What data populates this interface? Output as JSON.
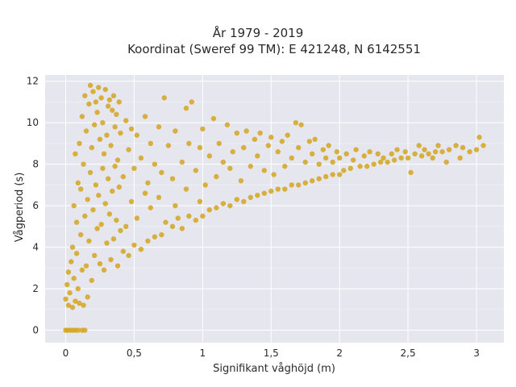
{
  "chart_data": {
    "type": "scatter",
    "title": "År 1979 - 2019",
    "subtitle": "Koordinat (Sweref 99 TM): E 421248, N 6142551",
    "xlabel": "Signifikant våghöjd (m)",
    "ylabel": "Vågperiod (s)",
    "xlim": [
      -0.15,
      3.2
    ],
    "ylim": [
      -0.6,
      12.3
    ],
    "x_ticks": [
      0,
      0.5,
      1,
      1.5,
      2,
      2.5,
      3
    ],
    "x_tick_labels": [
      "0",
      "0,5",
      "1",
      "1,5",
      "2",
      "2,5",
      "3"
    ],
    "y_ticks": [
      0,
      2,
      4,
      6,
      8,
      10,
      12
    ],
    "y_tick_labels": [
      "0",
      "2",
      "4",
      "6",
      "8",
      "10",
      "12"
    ],
    "grid": true,
    "colors": {
      "marker": "#d4a420",
      "plot_background": "#e6e6ef",
      "grid": "#ffffff",
      "text": "#2a2a2a"
    },
    "series": [
      {
        "values": [
          [
            0.0,
            0.0
          ],
          [
            0.01,
            0.0
          ],
          [
            0.03,
            0.0
          ],
          [
            0.05,
            0.0
          ],
          [
            0.07,
            0.0
          ],
          [
            0.09,
            0.0
          ],
          [
            0.12,
            0.0
          ],
          [
            0.14,
            0.0
          ],
          [
            0.0,
            1.5
          ],
          [
            0.01,
            2.2
          ],
          [
            0.02,
            1.2
          ],
          [
            0.02,
            2.8
          ],
          [
            0.03,
            1.8
          ],
          [
            0.04,
            3.3
          ],
          [
            0.05,
            1.1
          ],
          [
            0.05,
            4.0
          ],
          [
            0.06,
            2.5
          ],
          [
            0.06,
            6.0
          ],
          [
            0.07,
            1.4
          ],
          [
            0.07,
            8.5
          ],
          [
            0.08,
            3.7
          ],
          [
            0.08,
            5.2
          ],
          [
            0.09,
            7.1
          ],
          [
            0.09,
            2.0
          ],
          [
            0.1,
            1.3
          ],
          [
            0.1,
            9.0
          ],
          [
            0.11,
            4.6
          ],
          [
            0.11,
            6.8
          ],
          [
            0.12,
            2.9
          ],
          [
            0.12,
            10.3
          ],
          [
            0.13,
            1.2
          ],
          [
            0.13,
            8.0
          ],
          [
            0.14,
            5.5
          ],
          [
            0.14,
            11.3
          ],
          [
            0.15,
            3.1
          ],
          [
            0.15,
            9.6
          ],
          [
            0.16,
            6.3
          ],
          [
            0.16,
            1.6
          ],
          [
            0.17,
            10.9
          ],
          [
            0.17,
            4.3
          ],
          [
            0.18,
            7.6
          ],
          [
            0.18,
            11.8
          ],
          [
            0.19,
            2.4
          ],
          [
            0.19,
            8.8
          ],
          [
            0.2,
            5.8
          ],
          [
            0.2,
            11.5
          ],
          [
            0.21,
            3.6
          ],
          [
            0.21,
            9.9
          ],
          [
            0.22,
            7.0
          ],
          [
            0.22,
            11.0
          ],
          [
            0.23,
            4.9
          ],
          [
            0.23,
            10.5
          ],
          [
            0.24,
            6.5
          ],
          [
            0.24,
            11.7
          ],
          [
            0.25,
            3.2
          ],
          [
            0.25,
            9.2
          ],
          [
            0.26,
            5.1
          ],
          [
            0.26,
            11.2
          ],
          [
            0.27,
            7.8
          ],
          [
            0.27,
            10.0
          ],
          [
            0.28,
            2.9
          ],
          [
            0.28,
            8.5
          ],
          [
            0.29,
            6.1
          ],
          [
            0.29,
            11.6
          ],
          [
            0.3,
            4.2
          ],
          [
            0.3,
            9.4
          ],
          [
            0.31,
            7.3
          ],
          [
            0.31,
            10.8
          ],
          [
            0.32,
            5.6
          ],
          [
            0.32,
            11.1
          ],
          [
            0.33,
            3.4
          ],
          [
            0.33,
            8.9
          ],
          [
            0.34,
            6.7
          ],
          [
            0.34,
            10.6
          ],
          [
            0.35,
            4.4
          ],
          [
            0.35,
            11.3
          ],
          [
            0.36,
            7.9
          ],
          [
            0.36,
            9.8
          ],
          [
            0.37,
            5.3
          ],
          [
            0.37,
            10.4
          ],
          [
            0.38,
            3.1
          ],
          [
            0.38,
            8.2
          ],
          [
            0.39,
            6.9
          ],
          [
            0.39,
            11.0
          ],
          [
            0.4,
            4.8
          ],
          [
            0.4,
            9.5
          ],
          [
            0.42,
            3.8
          ],
          [
            0.42,
            7.4
          ],
          [
            0.44,
            5.0
          ],
          [
            0.44,
            10.1
          ],
          [
            0.46,
            3.6
          ],
          [
            0.46,
            8.7
          ],
          [
            0.48,
            6.2
          ],
          [
            0.48,
            9.7
          ],
          [
            0.5,
            4.1
          ],
          [
            0.5,
            7.8
          ],
          [
            0.52,
            5.4
          ],
          [
            0.52,
            9.4
          ],
          [
            0.55,
            3.9
          ],
          [
            0.55,
            8.3
          ],
          [
            0.58,
            6.6
          ],
          [
            0.58,
            10.3
          ],
          [
            0.6,
            4.3
          ],
          [
            0.6,
            7.1
          ],
          [
            0.62,
            5.9
          ],
          [
            0.62,
            9.0
          ],
          [
            0.65,
            4.5
          ],
          [
            0.65,
            8.0
          ],
          [
            0.68,
            6.4
          ],
          [
            0.68,
            9.8
          ],
          [
            0.7,
            4.6
          ],
          [
            0.7,
            7.6
          ],
          [
            0.72,
            11.2
          ],
          [
            0.73,
            5.2
          ],
          [
            0.75,
            8.9
          ],
          [
            0.78,
            5.0
          ],
          [
            0.78,
            7.3
          ],
          [
            0.8,
            6.0
          ],
          [
            0.8,
            9.6
          ],
          [
            0.82,
            5.4
          ],
          [
            0.85,
            8.1
          ],
          [
            0.85,
            4.9
          ],
          [
            0.88,
            6.8
          ],
          [
            0.88,
            10.7
          ],
          [
            0.9,
            5.5
          ],
          [
            0.9,
            9.0
          ],
          [
            0.92,
            11.0
          ],
          [
            0.95,
            5.3
          ],
          [
            0.95,
            7.7
          ],
          [
            0.98,
            6.2
          ],
          [
            0.98,
            8.8
          ],
          [
            1.0,
            5.5
          ],
          [
            1.0,
            9.7
          ],
          [
            1.02,
            7.0
          ],
          [
            1.05,
            5.8
          ],
          [
            1.05,
            8.4
          ],
          [
            1.08,
            10.2
          ],
          [
            1.1,
            5.9
          ],
          [
            1.1,
            7.4
          ],
          [
            1.12,
            9.0
          ],
          [
            1.15,
            6.1
          ],
          [
            1.15,
            8.1
          ],
          [
            1.18,
            9.9
          ],
          [
            1.2,
            6.0
          ],
          [
            1.2,
            7.8
          ],
          [
            1.22,
            8.6
          ],
          [
            1.25,
            6.3
          ],
          [
            1.25,
            9.5
          ],
          [
            1.28,
            7.2
          ],
          [
            1.3,
            6.2
          ],
          [
            1.3,
            8.8
          ],
          [
            1.32,
            9.6
          ],
          [
            1.35,
            6.4
          ],
          [
            1.35,
            7.9
          ],
          [
            1.38,
            9.2
          ],
          [
            1.4,
            6.5
          ],
          [
            1.4,
            8.4
          ],
          [
            1.42,
            9.5
          ],
          [
            1.45,
            6.6
          ],
          [
            1.45,
            7.7
          ],
          [
            1.48,
            8.9
          ],
          [
            1.5,
            6.7
          ],
          [
            1.5,
            9.3
          ],
          [
            1.52,
            7.5
          ],
          [
            1.55,
            6.8
          ],
          [
            1.55,
            8.6
          ],
          [
            1.58,
            9.1
          ],
          [
            1.6,
            6.8
          ],
          [
            1.6,
            7.9
          ],
          [
            1.62,
            9.4
          ],
          [
            1.65,
            7.0
          ],
          [
            1.65,
            8.3
          ],
          [
            1.68,
            10.0
          ],
          [
            1.7,
            7.0
          ],
          [
            1.7,
            8.8
          ],
          [
            1.72,
            9.9
          ],
          [
            1.75,
            7.1
          ],
          [
            1.75,
            8.1
          ],
          [
            1.78,
            9.1
          ],
          [
            1.8,
            7.2
          ],
          [
            1.8,
            8.5
          ],
          [
            1.82,
            9.2
          ],
          [
            1.85,
            7.3
          ],
          [
            1.85,
            8.0
          ],
          [
            1.88,
            8.7
          ],
          [
            1.9,
            7.4
          ],
          [
            1.9,
            8.3
          ],
          [
            1.92,
            8.9
          ],
          [
            1.95,
            7.5
          ],
          [
            1.95,
            8.1
          ],
          [
            1.98,
            8.6
          ],
          [
            2.0,
            7.5
          ],
          [
            2.0,
            8.3
          ],
          [
            2.03,
            7.7
          ],
          [
            2.05,
            8.5
          ],
          [
            2.08,
            7.8
          ],
          [
            2.1,
            8.2
          ],
          [
            2.12,
            8.7
          ],
          [
            2.15,
            7.9
          ],
          [
            2.18,
            8.4
          ],
          [
            2.2,
            7.9
          ],
          [
            2.22,
            8.6
          ],
          [
            2.25,
            8.0
          ],
          [
            2.28,
            8.5
          ],
          [
            2.3,
            8.1
          ],
          [
            2.32,
            8.3
          ],
          [
            2.35,
            8.1
          ],
          [
            2.38,
            8.5
          ],
          [
            2.4,
            8.2
          ],
          [
            2.42,
            8.7
          ],
          [
            2.45,
            8.3
          ],
          [
            2.48,
            8.6
          ],
          [
            2.5,
            8.3
          ],
          [
            2.52,
            7.6
          ],
          [
            2.55,
            8.5
          ],
          [
            2.58,
            8.9
          ],
          [
            2.6,
            8.4
          ],
          [
            2.62,
            8.7
          ],
          [
            2.65,
            8.5
          ],
          [
            2.68,
            8.3
          ],
          [
            2.7,
            8.6
          ],
          [
            2.72,
            8.9
          ],
          [
            2.75,
            8.6
          ],
          [
            2.78,
            8.1
          ],
          [
            2.8,
            8.7
          ],
          [
            2.85,
            8.9
          ],
          [
            2.88,
            8.3
          ],
          [
            2.9,
            8.8
          ],
          [
            2.95,
            8.6
          ],
          [
            3.0,
            8.7
          ],
          [
            3.02,
            9.3
          ],
          [
            3.05,
            8.9
          ]
        ]
      }
    ]
  }
}
